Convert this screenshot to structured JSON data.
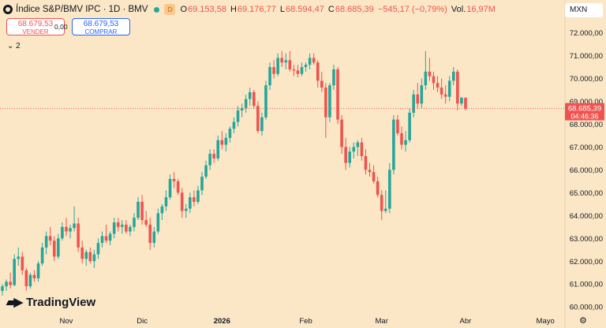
{
  "header": {
    "title": "Índice S&P/BMV IPC · 1D · BMV",
    "badge": "D",
    "open_label": "O",
    "open": "69.153,58",
    "high_label": "H",
    "high": "69.176,77",
    "low_label": "L",
    "low": "68.594,47",
    "close_label": "C",
    "close": "68.685,39",
    "change": "−545,17 (−0,79%)",
    "volume_label": "Vol.",
    "volume": "16,97M"
  },
  "trade": {
    "sell_price": "68.679,53",
    "sell_label": "VENDER",
    "spread": "0,00",
    "buy_price": "68.679,53",
    "buy_label": "COMPRAR"
  },
  "indicators_toggle": "⌄ 2",
  "currency": "MXN",
  "branding": "TradingView",
  "colors": {
    "up": "#26a69a",
    "down": "#ef5350",
    "background": "#fbe7c6"
  },
  "chart_data": {
    "type": "candlestick",
    "ylim": [
      59800,
      72400
    ],
    "y_ticks": [
      72000,
      71000,
      70000,
      69000,
      68000,
      67000,
      66000,
      65000,
      64000,
      63000,
      62000,
      61000,
      60000
    ],
    "y_tick_labels": [
      "72.000,00",
      "71.000,00",
      "70.000,00",
      "69.000,00",
      "68.000,00",
      "67.000,00",
      "66.000,00",
      "65.000,00",
      "64.000,00",
      "63.000,00",
      "62.000,00",
      "61.000,00",
      "60.000,00"
    ],
    "x_ticks": [
      {
        "label": "Nov",
        "index": 16,
        "bold": false
      },
      {
        "label": "Dic",
        "index": 35,
        "bold": false
      },
      {
        "label": "2026",
        "index": 55,
        "bold": true
      },
      {
        "label": "Feb",
        "index": 76,
        "bold": false
      },
      {
        "label": "Mar",
        "index": 95,
        "bold": false
      },
      {
        "label": "Abr",
        "index": 116,
        "bold": false
      },
      {
        "label": "Mayo",
        "index": 136,
        "bold": false
      }
    ],
    "last_price": {
      "value": 68685.39,
      "label": "68.685,39",
      "countdown": "04:46:36"
    },
    "ohlc": [
      [
        60700,
        61000,
        60500,
        60900
      ],
      [
        60900,
        61200,
        60700,
        61100
      ],
      [
        61100,
        61500,
        60800,
        60950
      ],
      [
        60950,
        62300,
        60900,
        62100
      ],
      [
        62100,
        62600,
        61800,
        62200
      ],
      [
        62200,
        62400,
        61400,
        61600
      ],
      [
        61600,
        61700,
        60700,
        60900
      ],
      [
        60900,
        61500,
        60800,
        61400
      ],
      [
        61400,
        61600,
        61100,
        61250
      ],
      [
        61250,
        62000,
        61100,
        61900
      ],
      [
        61900,
        62800,
        61800,
        62600
      ],
      [
        62600,
        63300,
        62300,
        63100
      ],
      [
        63100,
        63500,
        62700,
        62900
      ],
      [
        62900,
        63100,
        62000,
        62200
      ],
      [
        62200,
        63200,
        62100,
        63000
      ],
      [
        63000,
        63700,
        62900,
        63500
      ],
      [
        63500,
        63900,
        63100,
        63300
      ],
      [
        63300,
        63600,
        63000,
        63450
      ],
      [
        63450,
        64400,
        63300,
        63650
      ],
      [
        63650,
        63900,
        62400,
        62600
      ],
      [
        62600,
        62900,
        61900,
        62100
      ],
      [
        62100,
        62500,
        61800,
        62400
      ],
      [
        62400,
        62600,
        61900,
        62000
      ],
      [
        62000,
        62500,
        61700,
        62300
      ],
      [
        62300,
        63000,
        62100,
        62800
      ],
      [
        62800,
        63300,
        62600,
        63100
      ],
      [
        63100,
        63600,
        62800,
        62900
      ],
      [
        62900,
        63300,
        62700,
        63200
      ],
      [
        63200,
        63900,
        63000,
        63700
      ],
      [
        63700,
        63900,
        63300,
        63500
      ],
      [
        63500,
        63800,
        63200,
        63600
      ],
      [
        63600,
        63800,
        63200,
        63300
      ],
      [
        63300,
        63600,
        63100,
        63500
      ],
      [
        63500,
        64100,
        63300,
        63900
      ],
      [
        63900,
        64800,
        63800,
        64600
      ],
      [
        64600,
        64900,
        63600,
        63800
      ],
      [
        63800,
        64200,
        63500,
        63600
      ],
      [
        63600,
        63900,
        62500,
        62800
      ],
      [
        62800,
        63500,
        62600,
        63300
      ],
      [
        63300,
        64300,
        63200,
        64100
      ],
      [
        64100,
        64500,
        63800,
        64400
      ],
      [
        64400,
        65100,
        64200,
        64800
      ],
      [
        64800,
        65800,
        64700,
        65600
      ],
      [
        65600,
        65900,
        65200,
        65500
      ],
      [
        65500,
        65600,
        64900,
        65000
      ],
      [
        65000,
        65200,
        63900,
        64200
      ],
      [
        64200,
        64500,
        63900,
        64300
      ],
      [
        64300,
        65000,
        64100,
        64800
      ],
      [
        64800,
        65100,
        64400,
        64600
      ],
      [
        64600,
        65300,
        64500,
        65100
      ],
      [
        65100,
        65900,
        64900,
        65700
      ],
      [
        65700,
        66400,
        65600,
        66200
      ],
      [
        66200,
        66900,
        66000,
        66700
      ],
      [
        66700,
        66900,
        66300,
        66500
      ],
      [
        66500,
        67500,
        66400,
        67300
      ],
      [
        67300,
        67700,
        66900,
        67100
      ],
      [
        67100,
        67600,
        66800,
        67400
      ],
      [
        67400,
        67900,
        67200,
        67800
      ],
      [
        67800,
        68300,
        67600,
        68100
      ],
      [
        68100,
        68800,
        67900,
        68600
      ],
      [
        68600,
        68900,
        68300,
        68700
      ],
      [
        68700,
        69300,
        68500,
        69100
      ],
      [
        69100,
        69600,
        68800,
        69400
      ],
      [
        69400,
        69500,
        68700,
        68800
      ],
      [
        68800,
        69000,
        67600,
        67700
      ],
      [
        67700,
        68500,
        67500,
        68300
      ],
      [
        68300,
        69900,
        68200,
        69700
      ],
      [
        69700,
        70700,
        69500,
        70500
      ],
      [
        70500,
        70800,
        70000,
        70200
      ],
      [
        70200,
        71100,
        70100,
        70900
      ],
      [
        70900,
        71200,
        70500,
        70700
      ],
      [
        70700,
        71100,
        70400,
        70800
      ],
      [
        70800,
        71200,
        70300,
        70400
      ],
      [
        70400,
        70600,
        70100,
        70350
      ],
      [
        70350,
        70600,
        70050,
        70200
      ],
      [
        70200,
        70700,
        70100,
        70500
      ],
      [
        70500,
        70700,
        70300,
        70600
      ],
      [
        70600,
        71100,
        70400,
        70900
      ],
      [
        70900,
        71100,
        70600,
        70700
      ],
      [
        70700,
        70800,
        69600,
        69900
      ],
      [
        69900,
        70300,
        69400,
        69600
      ],
      [
        69600,
        69800,
        67400,
        68300
      ],
      [
        68300,
        69800,
        68100,
        69700
      ],
      [
        69700,
        70600,
        69500,
        70400
      ],
      [
        70400,
        70500,
        68000,
        68200
      ],
      [
        68200,
        68400,
        66700,
        67000
      ],
      [
        67000,
        67400,
        66000,
        66300
      ],
      [
        66300,
        67000,
        66100,
        66800
      ],
      [
        66800,
        67200,
        66500,
        67000
      ],
      [
        67000,
        67300,
        66600,
        67200
      ],
      [
        67200,
        67400,
        66400,
        66600
      ],
      [
        66600,
        66900,
        65800,
        66000
      ],
      [
        66000,
        66300,
        65700,
        65900
      ],
      [
        65900,
        66200,
        65400,
        65500
      ],
      [
        65500,
        65700,
        64800,
        64900
      ],
      [
        64900,
        65100,
        63800,
        64200
      ],
      [
        64200,
        65100,
        64100,
        64300
      ],
      [
        64300,
        66300,
        64100,
        66000
      ],
      [
        66000,
        68400,
        65800,
        68200
      ],
      [
        68200,
        68400,
        67500,
        67600
      ],
      [
        67600,
        67900,
        66900,
        67100
      ],
      [
        67100,
        67700,
        66800,
        67300
      ],
      [
        67300,
        68700,
        67200,
        68500
      ],
      [
        68500,
        69500,
        68300,
        69300
      ],
      [
        69300,
        69800,
        68700,
        68900
      ],
      [
        68900,
        70000,
        68700,
        69700
      ],
      [
        69700,
        71200,
        69500,
        70300
      ],
      [
        70300,
        70900,
        69900,
        70100
      ],
      [
        70100,
        70300,
        69500,
        69800
      ],
      [
        69800,
        70100,
        69400,
        69600
      ],
      [
        69600,
        70000,
        69100,
        69300
      ],
      [
        69300,
        69700,
        68900,
        69200
      ],
      [
        69200,
        70100,
        69000,
        69900
      ],
      [
        69900,
        70500,
        69700,
        70300
      ],
      [
        70300,
        70400,
        68600,
        68900
      ],
      [
        68900,
        69200,
        68800,
        69154
      ],
      [
        69154,
        69177,
        68594,
        68685
      ]
    ]
  }
}
